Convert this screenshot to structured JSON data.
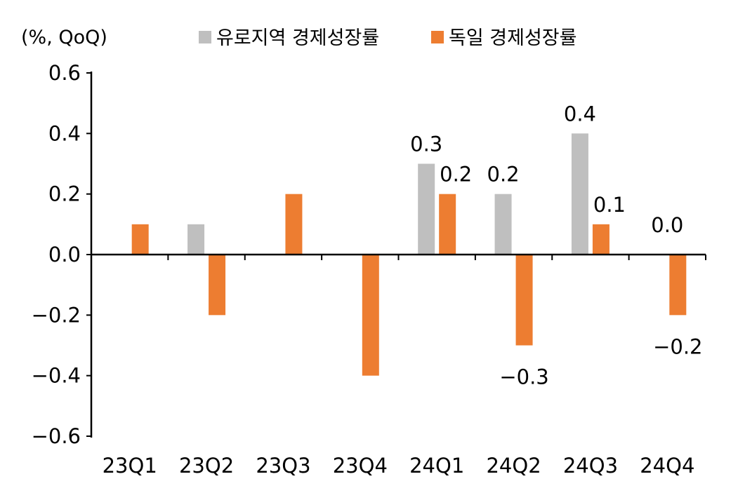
{
  "chart_data": {
    "type": "bar",
    "unit_label": "(%, QoQ)",
    "categories": [
      "23Q1",
      "23Q2",
      "23Q3",
      "23Q4",
      "24Q1",
      "24Q2",
      "24Q3",
      "24Q4"
    ],
    "series": [
      {
        "name": "유로지역 경제성장률",
        "color": "#bfbfbf",
        "values": [
          0.0,
          0.1,
          0.0,
          0.0,
          0.3,
          0.2,
          0.4,
          0.0
        ]
      },
      {
        "name": "독일 경제성장률",
        "color": "#ed7d31",
        "values": [
          0.1,
          -0.2,
          0.2,
          -0.4,
          0.2,
          -0.3,
          0.1,
          -0.2
        ]
      }
    ],
    "ylim": [
      -0.6,
      0.6
    ],
    "yticks": [
      "0.6",
      "0.4",
      "0.2",
      "0.0",
      "−0.2",
      "−0.4",
      "−0.6"
    ],
    "data_labels": [
      {
        "series": 0,
        "index": 4,
        "text": "0.3"
      },
      {
        "series": 1,
        "index": 4,
        "text": "0.2"
      },
      {
        "series": 0,
        "index": 5,
        "text": "0.2"
      },
      {
        "series": 1,
        "index": 5,
        "text": "−0.3"
      },
      {
        "series": 0,
        "index": 6,
        "text": "0.4"
      },
      {
        "series": 1,
        "index": 6,
        "text": "0.1"
      },
      {
        "series": 0,
        "index": 7,
        "text": "0.0"
      },
      {
        "series": 1,
        "index": 7,
        "text": "−0.2"
      }
    ],
    "legend_position": "top"
  }
}
